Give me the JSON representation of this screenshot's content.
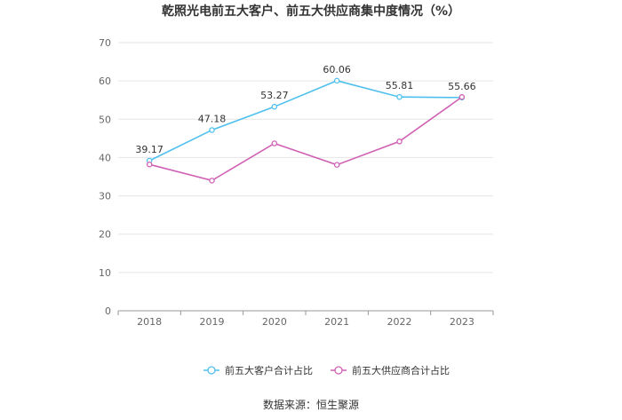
{
  "chart_data": {
    "type": "line",
    "title": "乾照光电前五大客户、前五大供应商集中度情况（%）",
    "categories": [
      "2018",
      "2019",
      "2020",
      "2021",
      "2022",
      "2023"
    ],
    "ylim": [
      0,
      70
    ],
    "yticks": [
      0,
      10,
      20,
      30,
      40,
      50,
      60,
      70
    ],
    "grid": true,
    "legend_position": "bottom",
    "series": [
      {
        "name": "前五大客户合计占比",
        "color": "#4fc0ee",
        "values": [
          39.17,
          47.18,
          53.27,
          60.06,
          55.81,
          55.66
        ],
        "labels": [
          "39.17",
          "47.18",
          "53.27",
          "60.06",
          "55.81",
          "55.66"
        ]
      },
      {
        "name": "前五大供应商合计占比",
        "color": "#d060b4",
        "values": [
          38.2,
          34.0,
          43.7,
          38.1,
          44.2,
          55.8
        ]
      }
    ],
    "source": "数据来源：恒生聚源"
  }
}
